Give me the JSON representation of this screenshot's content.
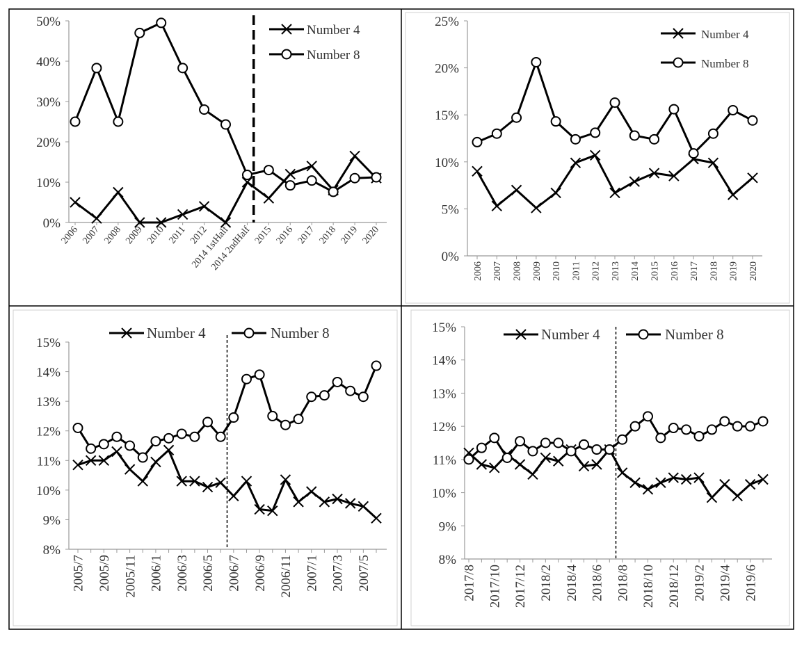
{
  "chart_data": [
    {
      "type": "line",
      "categories": [
        "2006",
        "2007",
        "2008",
        "2009",
        "2010",
        "2011",
        "2012",
        "2014 1stHalf",
        "2014 2ndHalf",
        "2015",
        "2016",
        "2017",
        "2018",
        "2019",
        "2020"
      ],
      "y_ticks": [
        "0%",
        "10%",
        "20%",
        "30%",
        "40%",
        "50%"
      ],
      "ylim": [
        0,
        50
      ],
      "divider_after_index": 8.3,
      "divider_style": "bold-dashed",
      "legend_position": "top-right",
      "series": [
        {
          "name": "Number 4",
          "marker": "x",
          "values": [
            5.0,
            1.0,
            7.5,
            0.0,
            0.0,
            2.0,
            4.0,
            0.0,
            10.0,
            6.0,
            12.0,
            14.0,
            8.0,
            16.5,
            11.0
          ]
        },
        {
          "name": "Number 8",
          "marker": "circle",
          "values": [
            25.0,
            38.3,
            25.0,
            47.0,
            49.5,
            38.3,
            28.0,
            24.3,
            11.8,
            13.0,
            9.2,
            10.4,
            7.6,
            11.0,
            11.2
          ]
        }
      ]
    },
    {
      "type": "line",
      "categories": [
        "2006",
        "2007",
        "2008",
        "2009",
        "2010",
        "2011",
        "2012",
        "2013",
        "2014",
        "2015",
        "2016",
        "2017",
        "2018",
        "2019",
        "2020"
      ],
      "y_ticks": [
        "0%",
        "5%",
        "10%",
        "15%",
        "20%",
        "25%"
      ],
      "ylim": [
        0,
        25
      ],
      "legend_position": "top-right",
      "series": [
        {
          "name": "Number  4",
          "marker": "x",
          "values": [
            9.0,
            5.3,
            7.0,
            5.1,
            6.7,
            9.9,
            10.7,
            6.7,
            7.9,
            8.8,
            8.5,
            10.3,
            9.9,
            6.5,
            8.3
          ]
        },
        {
          "name": "Number  8",
          "marker": "circle",
          "values": [
            12.1,
            13.0,
            14.7,
            20.6,
            14.3,
            12.4,
            13.1,
            16.3,
            12.8,
            12.4,
            15.6,
            10.9,
            13.0,
            15.5,
            14.4
          ]
        }
      ]
    },
    {
      "type": "line",
      "categories": [
        "2005/7",
        "2005/8",
        "2005/9",
        "2005/10",
        "2005/11",
        "2005/12",
        "2006/1",
        "2006/2",
        "2006/3",
        "2006/4",
        "2006/5",
        "2006/6",
        "2006/7",
        "2006/8",
        "2006/9",
        "2006/10",
        "2006/11",
        "2006/12",
        "2007/1",
        "2007/2",
        "2007/3",
        "2007/4",
        "2007/5",
        "2007/6"
      ],
      "x_tick_labels": [
        "2005/7",
        "2005/9",
        "2005/11",
        "2006/1",
        "2006/3",
        "2006/5",
        "2006/7",
        "2006/9",
        "2006/11",
        "2007/1",
        "2007/3",
        "2007/5"
      ],
      "y_ticks": [
        "8%",
        "9%",
        "10%",
        "11%",
        "12%",
        "13%",
        "14%",
        "15%"
      ],
      "ylim": [
        8,
        15
      ],
      "divider_after_index": 11.5,
      "divider_style": "thin-dashed",
      "legend_position": "top",
      "series": [
        {
          "name": "Number 4",
          "marker": "x",
          "values": [
            10.85,
            11.0,
            11.0,
            11.3,
            10.7,
            10.3,
            10.95,
            11.35,
            10.3,
            10.3,
            10.1,
            10.25,
            9.8,
            10.3,
            9.35,
            9.3,
            10.35,
            9.6,
            9.95,
            9.6,
            9.7,
            9.55,
            9.45,
            9.05
          ]
        },
        {
          "name": "Number 8",
          "marker": "circle",
          "values": [
            12.1,
            11.4,
            11.55,
            11.8,
            11.5,
            11.1,
            11.65,
            11.75,
            11.9,
            11.8,
            12.3,
            11.8,
            12.45,
            13.75,
            13.9,
            12.5,
            12.2,
            12.4,
            13.15,
            13.2,
            13.65,
            13.35,
            13.15,
            14.2
          ]
        }
      ]
    },
    {
      "type": "line",
      "categories": [
        "2017/8",
        "2017/9",
        "2017/10",
        "2017/11",
        "2017/12",
        "2018/1",
        "2018/2",
        "2018/3",
        "2018/4",
        "2018/5",
        "2018/6",
        "2018/7",
        "2018/8",
        "2018/9",
        "2018/10",
        "2018/11",
        "2018/12",
        "2019/1",
        "2019/2",
        "2019/3",
        "2019/4",
        "2019/5",
        "2019/6",
        "2019/7"
      ],
      "x_tick_labels": [
        "2017/8",
        "2017/10",
        "2017/12",
        "2018/2",
        "2018/4",
        "2018/6",
        "2018/8",
        "2018/10",
        "2018/12",
        "2019/2",
        "2019/4",
        "2019/6"
      ],
      "y_ticks": [
        "8%",
        "9%",
        "10%",
        "11%",
        "12%",
        "13%",
        "14%",
        "15%"
      ],
      "ylim": [
        8,
        15
      ],
      "divider_after_index": 11.5,
      "divider_style": "thin-dashed",
      "legend_position": "top",
      "series": [
        {
          "name": "Number 4",
          "marker": "x",
          "values": [
            11.2,
            10.85,
            10.75,
            11.15,
            10.85,
            10.55,
            11.05,
            10.95,
            11.3,
            10.8,
            10.85,
            11.3,
            10.6,
            10.3,
            10.1,
            10.3,
            10.45,
            10.4,
            10.45,
            9.85,
            10.25,
            9.9,
            10.25,
            10.4
          ]
        },
        {
          "name": "Number 8",
          "marker": "circle",
          "values": [
            11.0,
            11.35,
            11.65,
            11.05,
            11.55,
            11.25,
            11.5,
            11.5,
            11.25,
            11.45,
            11.3,
            11.3,
            11.6,
            12.0,
            12.3,
            11.65,
            11.95,
            11.9,
            11.7,
            11.9,
            12.15,
            12.0,
            12.0,
            12.15
          ]
        }
      ]
    }
  ]
}
